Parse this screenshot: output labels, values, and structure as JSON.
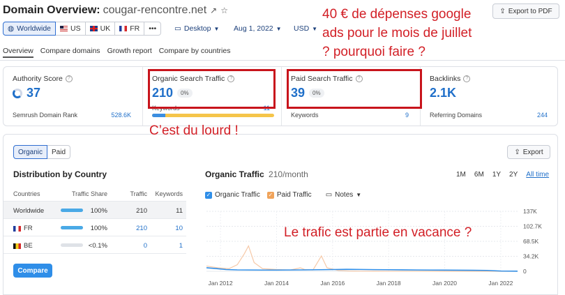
{
  "header": {
    "title_label": "Domain Overview:",
    "domain": "cougar-rencontre.net",
    "export_pdf": "Export to PDF"
  },
  "filters": {
    "databases": [
      {
        "label": "Worldwide",
        "active": true
      },
      {
        "label": "US"
      },
      {
        "label": "UK"
      },
      {
        "label": "FR"
      },
      {
        "label": "•••"
      }
    ],
    "device": "Desktop",
    "date": "Aug 1, 2022",
    "currency": "USD"
  },
  "tabs": [
    "Overview",
    "Compare domains",
    "Growth report",
    "Compare by countries"
  ],
  "annotations": {
    "question_line1": "40 € de dépenses google",
    "question_line2": "ads pour le mois de juillet",
    "question_line3": "? pourquoi faire ?",
    "heavy": "C’est du lourd !",
    "vacation": "Le trafic est partie en vacance ?"
  },
  "metrics": {
    "authority": {
      "label": "Authority Score",
      "value": "37",
      "sub_label": "Semrush Domain Rank",
      "sub_value": "528.6K"
    },
    "organic": {
      "label": "Organic Search Traffic",
      "value": "210",
      "change": "0%",
      "sub_label": "Keywords",
      "sub_value": "11",
      "bar_fraction": 0.11
    },
    "paid": {
      "label": "Paid Search Traffic",
      "value": "39",
      "change": "0%",
      "sub_label": "Keywords",
      "sub_value": "9"
    },
    "backlinks": {
      "label": "Backlinks",
      "value": "2.1K",
      "sub_label": "Referring Domains",
      "sub_value": "244"
    }
  },
  "panel": {
    "seg_organic": "Organic",
    "seg_paid": "Paid",
    "export": "Export",
    "distribution_title": "Distribution by Country",
    "columns": {
      "country": "Countries",
      "share": "Traffic Share",
      "traffic": "Traffic",
      "keywords": "Keywords"
    },
    "rows": [
      {
        "country": "Worldwide",
        "share": "100%",
        "share_value": 100,
        "traffic": "210",
        "keywords": "11"
      },
      {
        "country": "FR",
        "share": "100%",
        "share_value": 100,
        "traffic": "210",
        "keywords": "10"
      },
      {
        "country": "BE",
        "share": "<0.1%",
        "share_value": 0,
        "traffic": "0",
        "keywords": "1"
      }
    ],
    "compare": "Compare",
    "chart_title": "Organic Traffic",
    "chart_unit": "210/month",
    "ranges": [
      "1M",
      "6M",
      "1Y",
      "2Y",
      "All time"
    ],
    "legend": {
      "organic": "Organic Traffic",
      "paid": "Paid Traffic",
      "notes": "Notes"
    }
  },
  "colors": {
    "accent": "#1f6fc9",
    "annotation": "#d21f26",
    "organic_line": "#2f8ee8",
    "paid_line": "#f6c9a8"
  },
  "chart_data": {
    "type": "line",
    "xlabel": "",
    "ylabel": "",
    "x_ticks": [
      "Jan 2012",
      "Jan 2014",
      "Jan 2016",
      "Jan 2018",
      "Jan 2020",
      "Jan 2022"
    ],
    "y_ticks": [
      "0",
      "34.2K",
      "68.5K",
      "102.7K",
      "137K"
    ],
    "ylim": [
      0,
      137000
    ],
    "xlim": [
      2011.5,
      2022.6
    ],
    "series": [
      {
        "name": "Organic Traffic",
        "x": [
          2011.5,
          2011.8,
          2012.2,
          2012.6,
          2013.0,
          2013.5,
          2014.0,
          2014.5,
          2015.0,
          2015.5,
          2016.0,
          2016.5,
          2017.0,
          2017.5,
          2018.0,
          2018.5,
          2019.0,
          2019.5,
          2020.0,
          2020.5,
          2021.0,
          2021.5,
          2022.0,
          2022.6
        ],
        "y": [
          8000,
          6500,
          4000,
          3200,
          3000,
          2800,
          2800,
          3000,
          3200,
          3600,
          4000,
          4500,
          4200,
          3800,
          3600,
          3300,
          3000,
          2800,
          2700,
          2500,
          2300,
          2000,
          600,
          300
        ]
      },
      {
        "name": "Paid Traffic",
        "x": [
          2011.5,
          2011.9,
          2012.3,
          2012.6,
          2012.85,
          2013.0,
          2013.2,
          2013.5,
          2014.0,
          2014.5,
          2014.85,
          2015.0,
          2015.3,
          2015.6,
          2015.8,
          2016.2,
          2016.6,
          2017.0,
          2017.5,
          2018.0,
          2019.0,
          2020.0,
          2021.0,
          2022.6
        ],
        "y": [
          12000,
          8000,
          6000,
          15000,
          40000,
          58000,
          20000,
          6000,
          4000,
          3000,
          8000,
          4000,
          3000,
          35000,
          8000,
          2000,
          500,
          300,
          200,
          100,
          100,
          0,
          0,
          0
        ]
      }
    ]
  }
}
